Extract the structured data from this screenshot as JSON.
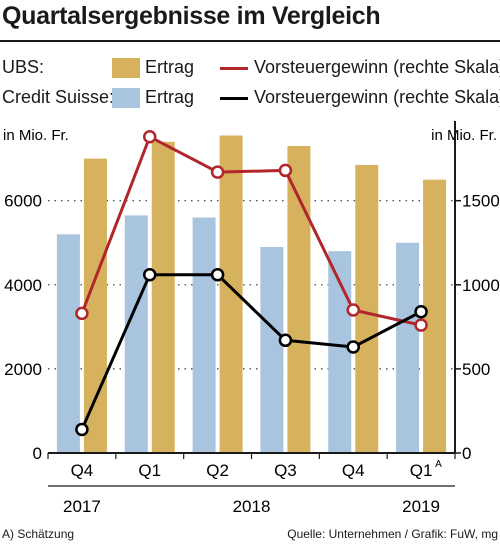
{
  "title": "Quartalsergebnisse im Vergleich",
  "legend": {
    "ubs_label": "UBS:",
    "cs_label": "Credit Suisse:",
    "ubs_bar": "Ertrag",
    "cs_bar": "Ertrag",
    "ubs_line": "Vorsteuergewinn (rechte Skala)",
    "cs_line": "Vorsteuergewinn (rechte Skala)"
  },
  "footnote": "A) Schätzung",
  "source": "Quelle: Unternehmen / Grafik: FuW, mg",
  "colors": {
    "ubs_bar": "#d6b25e",
    "cs_bar": "#a9c4de",
    "ubs_line": "#b1262b",
    "cs_line": "#000000",
    "grid": "#333333"
  },
  "chart_data": {
    "type": "bar",
    "categories": [
      "Q4",
      "Q1",
      "Q2",
      "Q3",
      "Q4",
      "Q1"
    ],
    "category_superscripts": [
      "",
      "",
      "",
      "",
      "",
      "A"
    ],
    "year_labels": [
      {
        "label": "2017",
        "category_index": 0
      },
      {
        "label": "2018",
        "category_index": 2.5
      },
      {
        "label": "2019",
        "category_index": 5
      }
    ],
    "left_axis": {
      "label": "in Mio. Fr.",
      "ylim": [
        0,
        7800
      ],
      "ticks": [
        0,
        2000,
        4000,
        6000
      ]
    },
    "right_axis": {
      "label": "in Mio. Fr.",
      "ylim": [
        0,
        1950
      ],
      "ticks": [
        0,
        500,
        1000,
        1500
      ]
    },
    "series": [
      {
        "name": "Ertrag",
        "group": "Credit Suisse",
        "kind": "bar",
        "axis": "left",
        "values": [
          5200,
          5650,
          5600,
          4900,
          4800,
          5000
        ]
      },
      {
        "name": "Ertrag",
        "group": "UBS",
        "kind": "bar",
        "axis": "left",
        "values": [
          7000,
          7400,
          7550,
          7300,
          6850,
          6500
        ]
      },
      {
        "name": "Vorsteuergewinn (rechte Skala)",
        "group": "UBS",
        "kind": "line",
        "axis": "right",
        "values": [
          830,
          1880,
          1670,
          1680,
          850,
          760
        ]
      },
      {
        "name": "Vorsteuergewinn (rechte Skala)",
        "group": "Credit Suisse",
        "kind": "line",
        "axis": "right",
        "values": [
          140,
          1060,
          1060,
          670,
          630,
          840
        ]
      }
    ],
    "grid": "dotted horizontal"
  }
}
